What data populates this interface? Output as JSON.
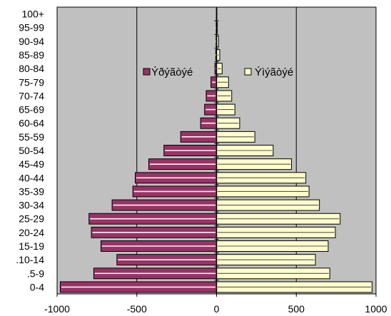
{
  "chart_data": {
    "type": "bar",
    "orientation": "horizontal",
    "layout": "population-pyramid",
    "categories": [
      "0-4",
      ".5-9",
      ".10-14",
      "15-19",
      "20-24",
      "25-29",
      "30-34",
      "35-39",
      "40-44",
      "45-49",
      "50-54",
      "55-59",
      "60-64",
      "65-69",
      "70-74",
      "75-79",
      "80-84",
      "85-89",
      "90-94",
      "95-99",
      "100+"
    ],
    "series": [
      {
        "name": "Ýðýãòýé",
        "color": "#993366",
        "values": [
          -980,
          -770,
          -625,
          -725,
          -785,
          -800,
          -655,
          -525,
          -510,
          -425,
          -330,
          -225,
          -100,
          -75,
          -65,
          -35,
          -10,
          -5,
          -3,
          -2,
          -1
        ]
      },
      {
        "name": "Ýìýãòýé",
        "color": "#ffffcc",
        "values": [
          975,
          710,
          620,
          700,
          745,
          775,
          645,
          580,
          560,
          470,
          355,
          240,
          145,
          115,
          95,
          75,
          35,
          20,
          12,
          5,
          2
        ]
      }
    ],
    "xlim": [
      -1000,
      1000
    ],
    "x_ticks": [
      "-1000",
      "-500",
      "0",
      "500",
      "1000"
    ],
    "grid": "vertical",
    "legend": "top-center",
    "plot_background": "#c0c0c0",
    "title": "",
    "xlabel": "",
    "ylabel": ""
  }
}
